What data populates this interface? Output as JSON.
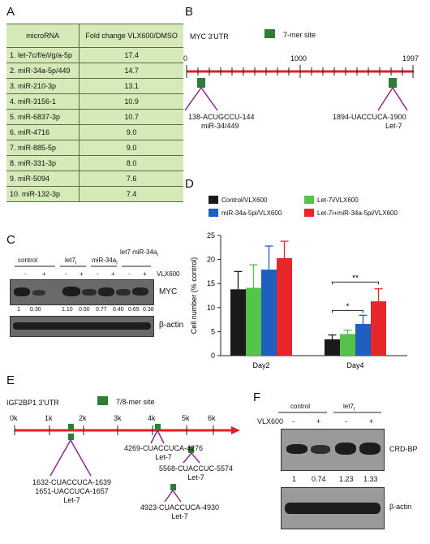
{
  "panels": {
    "A": "A",
    "B": "B",
    "C": "C",
    "D": "D",
    "E": "E",
    "F": "F"
  },
  "panel_a": {
    "col_headers": [
      "microRNA",
      "Fold change VLX600/DMSO"
    ],
    "rows": [
      {
        "name": "1.  let-7c/f/e/i/g/a-5p",
        "value": "17.4"
      },
      {
        "name": "2.  miR-34a-5p/449",
        "value": "14.7"
      },
      {
        "name": "3.  miR-210-3p",
        "value": "13.1"
      },
      {
        "name": "4.  miR-3156-1",
        "value": "10.9"
      },
      {
        "name": "5.  miR-6837-3p",
        "value": "10.7"
      },
      {
        "name": "6.  miR-4716",
        "value": "9.0"
      },
      {
        "name": "7.  miR-885-5p",
        "value": "9.0"
      },
      {
        "name": "8.  miR-331-3p",
        "value": "8.0"
      },
      {
        "name": "9.  miR-5094",
        "value": "7.6"
      },
      {
        "name": "10. miR-132-3p",
        "value": "7.4"
      }
    ]
  },
  "panel_b": {
    "title": "MYC 3'UTR",
    "legend": "7-mer site",
    "tick_start": "0",
    "tick_mid": "1000",
    "tick_end": "1997",
    "site1_seq": "138-ACUGCCU-144",
    "site1_mirna": "miR-34/449",
    "site2_seq": "1894-UACCUCA-1900",
    "site2_mirna": "Let-7"
  },
  "panel_c": {
    "groups": [
      "control",
      "let7",
      "miR-34a",
      "let7 miR-34a"
    ],
    "group_subscripts": [
      "",
      "i",
      "i",
      "i"
    ],
    "vlx_label": "VLX600",
    "signs": [
      "-",
      "+",
      "-",
      "+",
      "-",
      "+",
      "-",
      "+"
    ],
    "quant": [
      "1",
      "0.30",
      "1.10",
      "0.50",
      "0.77",
      "0.40",
      "0.65",
      "0.38"
    ],
    "myc_label": "MYC",
    "actin_label": "β-actin"
  },
  "panel_d": {
    "legend": [
      {
        "label": "Control/VLX600",
        "color": "#1a1a1a"
      },
      {
        "label": "Let-7i/VLX600",
        "color": "#55c24a"
      },
      {
        "label": "miR-34a-5pi/VLX600",
        "color": "#1f5fbf"
      },
      {
        "label": "Let-7i+miR-34a-5pi/VLX600",
        "color": "#e8262a"
      }
    ],
    "sig_single": "*",
    "sig_double": "**"
  },
  "chart_data": {
    "type": "bar",
    "categories": [
      "Day2",
      "Day4"
    ],
    "series": [
      {
        "name": "Control/VLX600",
        "values": [
          13.8,
          3.4
        ],
        "errors": [
          3.7,
          0.9
        ]
      },
      {
        "name": "Let-7i/VLX600",
        "values": [
          14.1,
          4.5
        ],
        "errors": [
          4.8,
          0.8
        ]
      },
      {
        "name": "miR-34a-5pi/VLX600",
        "values": [
          17.9,
          6.6
        ],
        "errors": [
          4.9,
          1.8
        ]
      },
      {
        "name": "Let-7i+miR-34a-5pi/VLX600",
        "values": [
          20.3,
          11.3
        ],
        "errors": [
          3.5,
          2.6
        ]
      }
    ],
    "ylabel": "Cell number (% control)",
    "ylim": [
      0,
      25
    ],
    "yticks": [
      "0",
      "5",
      "10",
      "15",
      "20",
      "25"
    ],
    "grid": false
  },
  "panel_e": {
    "title": "IGF2BP1 3'UTR",
    "legend": "7/8-mer site",
    "ticks": [
      "0k",
      "1k",
      "2k",
      "3k",
      "4k",
      "5k",
      "6k"
    ],
    "site_a_lines": [
      "1632-CUACCUCA-1639",
      "1651-UACCUCA-1657",
      "Let-7"
    ],
    "site_b_lines": [
      "4269-CUACCUCA-4276",
      "Let-7"
    ],
    "site_c_lines": [
      "5568-CUACCUC-5574",
      "Let-7"
    ],
    "site_d_lines": [
      "4923-CUACCUCA-4930",
      "Let-7"
    ]
  },
  "panel_f": {
    "groups": [
      "control",
      "let7"
    ],
    "group_subscripts": [
      "",
      "i"
    ],
    "vlx_label": "VLX600",
    "signs": [
      "-",
      "+",
      "-",
      "+"
    ],
    "quant": [
      "1",
      "0.74",
      "1.23",
      "1.33"
    ],
    "crd_label": "CRD-BP",
    "actin_label": "β-actin"
  }
}
